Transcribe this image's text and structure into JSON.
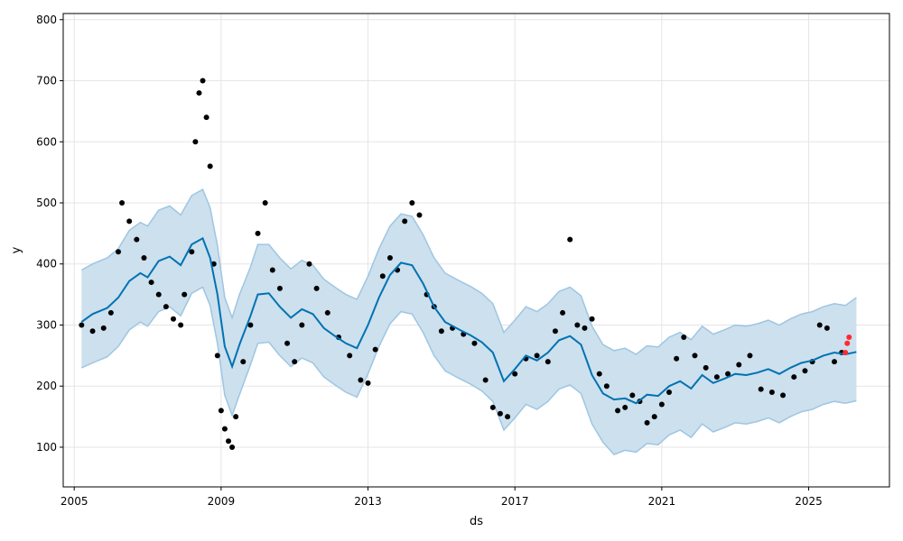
{
  "chart_data": {
    "type": "line",
    "title": "",
    "xlabel": "ds",
    "ylabel": "y",
    "x_range": [
      2004.7,
      2027.2
    ],
    "ylim": [
      35,
      810
    ],
    "grid": true,
    "x_ticks": [
      {
        "value": 2005,
        "label": "2005"
      },
      {
        "value": 2009,
        "label": "2009"
      },
      {
        "value": 2013,
        "label": "2013"
      },
      {
        "value": 2017,
        "label": "2017"
      },
      {
        "value": 2021,
        "label": "2021"
      },
      {
        "value": 2025,
        "label": "2025"
      }
    ],
    "y_ticks": [
      {
        "value": 100,
        "label": "100"
      },
      {
        "value": 200,
        "label": "200"
      },
      {
        "value": 300,
        "label": "300"
      },
      {
        "value": 400,
        "label": "400"
      },
      {
        "value": 500,
        "label": "500"
      },
      {
        "value": 600,
        "label": "600"
      },
      {
        "value": 700,
        "label": "700"
      },
      {
        "value": 800,
        "label": "800"
      }
    ],
    "colors": {
      "forecast": "#0072b2",
      "interval_fill": "#cce0ee",
      "interval_edge": "#9ec6e2",
      "observed": "#000000",
      "recent_observed": "#ff2a2a",
      "grid": "#e5e5e5"
    },
    "forecast": {
      "x": [
        2005.2,
        2005.5,
        2005.9,
        2006.2,
        2006.5,
        2006.8,
        2007.0,
        2007.3,
        2007.6,
        2007.9,
        2008.2,
        2008.5,
        2008.7,
        2008.9,
        2009.1,
        2009.3,
        2009.5,
        2009.8,
        2010.0,
        2010.3,
        2010.6,
        2010.9,
        2011.2,
        2011.5,
        2011.8,
        2012.1,
        2012.4,
        2012.7,
        2013.0,
        2013.3,
        2013.6,
        2013.9,
        2014.2,
        2014.5,
        2014.8,
        2015.1,
        2015.5,
        2015.8,
        2016.1,
        2016.4,
        2016.7,
        2017.0,
        2017.3,
        2017.6,
        2017.9,
        2018.2,
        2018.5,
        2018.8,
        2019.1,
        2019.4,
        2019.7,
        2020.0,
        2020.3,
        2020.6,
        2020.9,
        2021.2,
        2021.5,
        2021.8,
        2022.1,
        2022.4,
        2022.7,
        2023.0,
        2023.3,
        2023.6,
        2023.9,
        2024.2,
        2024.5,
        2024.8,
        2025.1,
        2025.4,
        2025.7,
        2026.0,
        2026.3
      ],
      "yhat": [
        305,
        318,
        328,
        345,
        372,
        385,
        378,
        405,
        412,
        398,
        432,
        442,
        410,
        350,
        265,
        232,
        268,
        315,
        350,
        352,
        330,
        312,
        326,
        318,
        295,
        282,
        270,
        262,
        300,
        345,
        382,
        402,
        398,
        368,
        330,
        305,
        292,
        283,
        272,
        255,
        208,
        228,
        250,
        242,
        255,
        275,
        282,
        268,
        218,
        188,
        178,
        180,
        172,
        186,
        184,
        200,
        208,
        196,
        218,
        205,
        212,
        220,
        218,
        222,
        228,
        220,
        230,
        238,
        242,
        250,
        255,
        252,
        256
      ],
      "lower": [
        230,
        238,
        248,
        265,
        292,
        305,
        298,
        322,
        330,
        315,
        352,
        362,
        332,
        270,
        185,
        152,
        186,
        235,
        270,
        272,
        250,
        232,
        246,
        238,
        215,
        202,
        190,
        182,
        220,
        265,
        302,
        322,
        318,
        288,
        250,
        225,
        212,
        203,
        192,
        175,
        128,
        148,
        170,
        162,
        175,
        195,
        202,
        188,
        138,
        108,
        88,
        95,
        92,
        106,
        104,
        120,
        128,
        116,
        138,
        125,
        132,
        140,
        138,
        142,
        148,
        140,
        150,
        158,
        162,
        170,
        175,
        172,
        176
      ],
      "upper": [
        390,
        400,
        410,
        425,
        455,
        468,
        462,
        488,
        495,
        480,
        512,
        522,
        492,
        430,
        345,
        312,
        350,
        395,
        432,
        432,
        410,
        392,
        406,
        398,
        375,
        362,
        350,
        342,
        380,
        425,
        462,
        482,
        478,
        448,
        410,
        385,
        372,
        363,
        352,
        335,
        288,
        308,
        330,
        322,
        335,
        355,
        362,
        348,
        298,
        268,
        258,
        262,
        252,
        266,
        264,
        280,
        288,
        276,
        298,
        285,
        292,
        300,
        298,
        302,
        308,
        300,
        310,
        318,
        322,
        330,
        335,
        332,
        345
      ]
    },
    "observed": {
      "x": [
        2005.2,
        2005.5,
        2005.8,
        2006.0,
        2006.2,
        2006.3,
        2006.5,
        2006.7,
        2006.9,
        2007.1,
        2007.3,
        2007.5,
        2007.7,
        2007.9,
        2008.0,
        2008.2,
        2008.3,
        2008.4,
        2008.5,
        2008.6,
        2008.7,
        2008.8,
        2008.9,
        2009.0,
        2009.1,
        2009.2,
        2009.3,
        2009.4,
        2009.6,
        2009.8,
        2010.0,
        2010.2,
        2010.4,
        2010.6,
        2010.8,
        2011.0,
        2011.2,
        2011.4,
        2011.6,
        2011.9,
        2012.2,
        2012.5,
        2012.8,
        2013.0,
        2013.2,
        2013.4,
        2013.6,
        2013.8,
        2014.0,
        2014.2,
        2014.4,
        2014.6,
        2014.8,
        2015.0,
        2015.3,
        2015.6,
        2015.9,
        2016.2,
        2016.4,
        2016.6,
        2016.8,
        2017.0,
        2017.3,
        2017.6,
        2017.9,
        2018.1,
        2018.3,
        2018.5,
        2018.7,
        2018.9,
        2019.1,
        2019.3,
        2019.5,
        2019.8,
        2020.0,
        2020.2,
        2020.4,
        2020.6,
        2020.8,
        2021.0,
        2021.2,
        2021.4,
        2021.6,
        2021.9,
        2022.2,
        2022.5,
        2022.8,
        2023.1,
        2023.4,
        2023.7,
        2024.0,
        2024.3,
        2024.6,
        2024.9,
        2025.1,
        2025.3,
        2025.5,
        2025.7,
        2025.9
      ],
      "y": [
        300,
        290,
        295,
        320,
        420,
        500,
        470,
        440,
        410,
        370,
        350,
        330,
        310,
        300,
        350,
        420,
        600,
        680,
        700,
        640,
        560,
        400,
        250,
        160,
        130,
        110,
        100,
        150,
        240,
        300,
        450,
        500,
        390,
        360,
        270,
        240,
        300,
        400,
        360,
        320,
        280,
        250,
        210,
        205,
        260,
        380,
        410,
        390,
        470,
        500,
        480,
        350,
        330,
        290,
        295,
        285,
        270,
        210,
        165,
        155,
        150,
        220,
        245,
        250,
        240,
        290,
        320,
        440,
        300,
        295,
        310,
        220,
        200,
        160,
        165,
        185,
        175,
        140,
        150,
        170,
        190,
        245,
        280,
        250,
        230,
        215,
        220,
        235,
        250,
        195,
        190,
        185,
        215,
        225,
        240,
        300,
        295,
        240,
        255
      ],
      "recent_x": [
        2026.0,
        2026.05,
        2026.1
      ],
      "recent_y": [
        255,
        270,
        280
      ]
    }
  }
}
